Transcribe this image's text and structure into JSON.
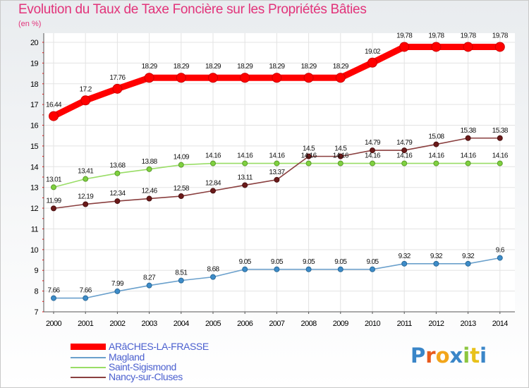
{
  "chart_data": {
    "type": "line",
    "title": "Evolution du Taux de Taxe Foncière sur les Propriétés Bâties",
    "ylabel": "(en %)",
    "xlabel": "",
    "ylim": [
      7,
      20
    ],
    "yticks": [
      "7",
      "8",
      "9",
      "10",
      "11",
      "12",
      "13",
      "14",
      "15",
      "16",
      "17",
      "18",
      "19",
      "20"
    ],
    "categories": [
      "2000",
      "2001",
      "2002",
      "2003",
      "2004",
      "2005",
      "2006",
      "2007",
      "2008",
      "2009",
      "2010",
      "2011",
      "2012",
      "2013",
      "2014"
    ],
    "series": [
      {
        "name": "ARâCHES-LA-FRASSE",
        "color": "#ff0000",
        "values": [
          16.44,
          17.2,
          17.76,
          18.29,
          18.29,
          18.29,
          18.29,
          18.29,
          18.29,
          18.29,
          19.02,
          19.78,
          19.78,
          19.78,
          19.78
        ],
        "labels": [
          "16.44",
          "17.2",
          "17.76",
          "18.29",
          "18.29",
          "18.29",
          "18.29",
          "18.29",
          "18.29",
          "18.29",
          "19.02",
          "19.78",
          "19.78",
          "19.78",
          "19.78"
        ]
      },
      {
        "name": "Magland",
        "color": "#6aa0cc",
        "values": [
          7.66,
          7.66,
          7.99,
          8.27,
          8.51,
          8.68,
          9.05,
          9.05,
          9.05,
          9.05,
          9.05,
          9.32,
          9.32,
          9.32,
          9.6
        ],
        "labels": [
          "7.66",
          "7.66",
          "7.99",
          "8.27",
          "8.51",
          "8.68",
          "9.05",
          "9.05",
          "9.05",
          "9.05",
          "9.05",
          "9.32",
          "9.32",
          "9.32",
          "9.6"
        ]
      },
      {
        "name": "Saint-Sigismond",
        "color": "#99dd66",
        "values": [
          13.01,
          13.41,
          13.68,
          13.88,
          14.09,
          14.16,
          14.16,
          14.16,
          14.16,
          14.16,
          14.16,
          14.16,
          14.16,
          14.16,
          14.16
        ],
        "labels": [
          "13.01",
          "13.41",
          "13.68",
          "13.88",
          "14.09",
          "14.16",
          "14.16",
          "14.16",
          "14.16",
          "14.16",
          "14.16",
          "14.16",
          "14.16",
          "14.16",
          "14.16"
        ]
      },
      {
        "name": "Nancy-sur-Cluses",
        "color": "#8a3f3f",
        "values": [
          11.99,
          12.19,
          12.34,
          12.46,
          12.58,
          12.84,
          13.11,
          13.37,
          14.5,
          14.5,
          14.79,
          14.79,
          15.08,
          15.38,
          15.38
        ],
        "labels": [
          "11.99",
          "12.19",
          "12.34",
          "12.46",
          "12.58",
          "12.84",
          "13.11",
          "13.37",
          "14.5",
          "14.5",
          "14.79",
          "14.79",
          "15.08",
          "15.38",
          "15.38"
        ]
      }
    ]
  },
  "legend": {
    "items": [
      "ARâCHES-LA-FRASSE",
      "Magland",
      "Saint-Sigismond",
      "Nancy-sur-Cluses"
    ]
  },
  "brand": {
    "text": "Proxiti",
    "letters": [
      "P",
      "r",
      "o",
      "x",
      "i",
      "t",
      "i"
    ],
    "letter_colors": [
      "#3a86c8",
      "#e85a1c",
      "#f2a51a",
      "#3a86c8",
      "#8cc63f",
      "#e8c11a",
      "#3a86c8"
    ]
  }
}
